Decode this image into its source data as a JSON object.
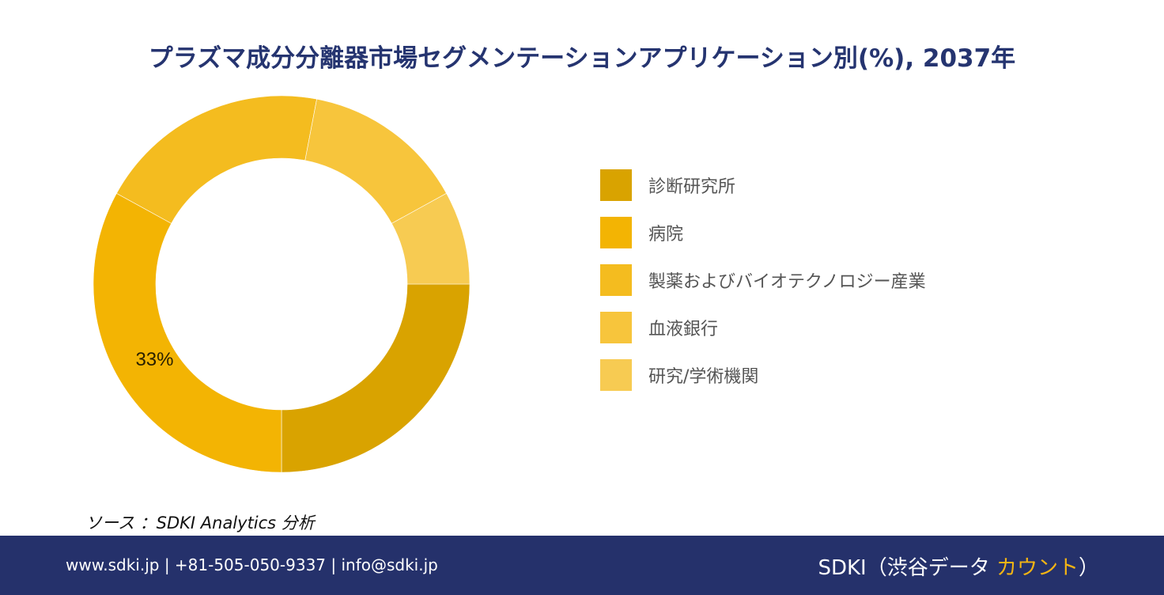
{
  "title": "プラズマ成分分離器市場セグメンテーションアプリケーション別(%), 2037年",
  "chart_data": {
    "type": "pie",
    "donut": true,
    "title": "プラズマ成分分離器市場セグメンテーションアプリケーション別(%), 2037年",
    "categories": [
      "診断研究所",
      "病院",
      "製薬およびバイオテクノロジー産業",
      "血液銀行",
      "研究/学術機関"
    ],
    "values": [
      25,
      33,
      20,
      14,
      8
    ],
    "colors": [
      "#d9a300",
      "#f3b403",
      "#f4bc1f",
      "#f7c53c",
      "#f7cb52"
    ],
    "data_labels": {
      "病院": "33%"
    },
    "legend_position": "right"
  },
  "legend": [
    {
      "label": "診断研究所",
      "color": "#d9a300"
    },
    {
      "label": "病院",
      "color": "#f3b403"
    },
    {
      "label": "製薬およびバイオテクノロジー産業",
      "color": "#f4bc1f"
    },
    {
      "label": "血液銀行",
      "color": "#f7c53c"
    },
    {
      "label": "研究/学術機関",
      "color": "#f7cb52"
    }
  ],
  "source": "ソース ：SDKI Analytics  分析",
  "footer": {
    "contact": "www.sdki.jp | +81-505-050-9337 | info@sdki.jp",
    "brand_prefix": "SDKI（渋谷データ ",
    "brand_accent": "カウント",
    "brand_suffix": "）",
    "background": "#25316b",
    "accent_color": "#f3b414"
  }
}
